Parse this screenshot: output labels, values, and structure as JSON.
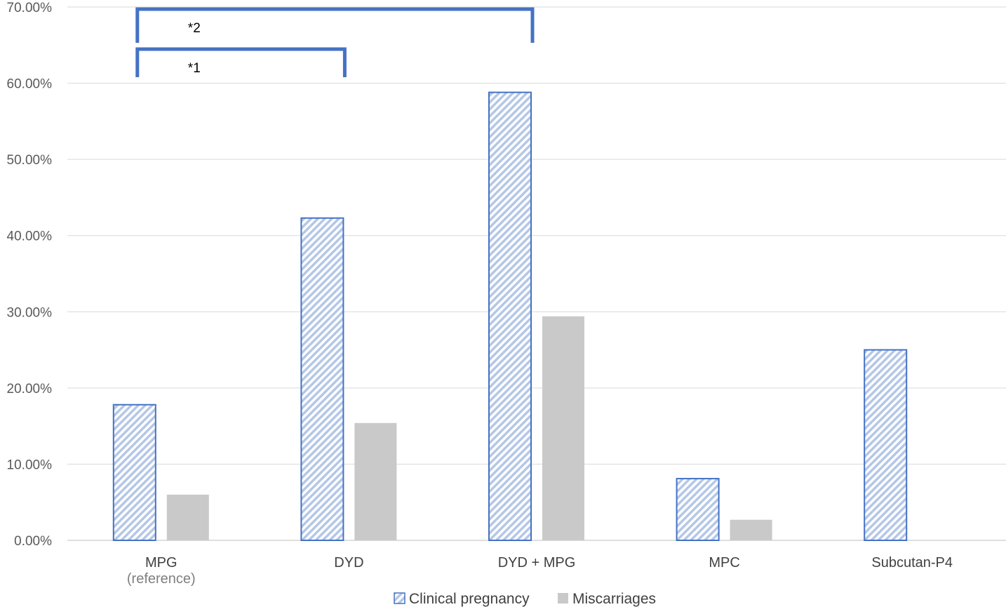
{
  "chart_data": {
    "type": "bar",
    "categories": [
      "MPG",
      "DYD",
      "DYD + MPG",
      "MPC",
      "Subcutan-P4"
    ],
    "category_sublabels": [
      "(reference)",
      "",
      "",
      "",
      ""
    ],
    "series": [
      {
        "name": "Clinical pregnancy",
        "values": [
          17.8,
          42.3,
          58.8,
          8.1,
          25.0
        ],
        "color": "#4472c4",
        "fill": "diagonal-hatch"
      },
      {
        "name": "Miscarriages",
        "values": [
          6.0,
          15.4,
          29.4,
          2.7,
          0.0
        ],
        "color": "#c9c9c9",
        "fill": "solid"
      }
    ],
    "ylim": [
      0,
      70
    ],
    "yticks": [
      "0.00%",
      "10.00%",
      "20.00%",
      "30.00%",
      "40.00%",
      "50.00%",
      "60.00%",
      "70.00%"
    ],
    "grid": true,
    "legend_position": "bottom",
    "annotations": [
      {
        "label": "*1",
        "from_category": "MPG",
        "to_category": "DYD"
      },
      {
        "label": "*2",
        "from_category": "MPG",
        "to_category": "DYD + MPG"
      }
    ],
    "title": "",
    "xlabel": "",
    "ylabel": ""
  }
}
